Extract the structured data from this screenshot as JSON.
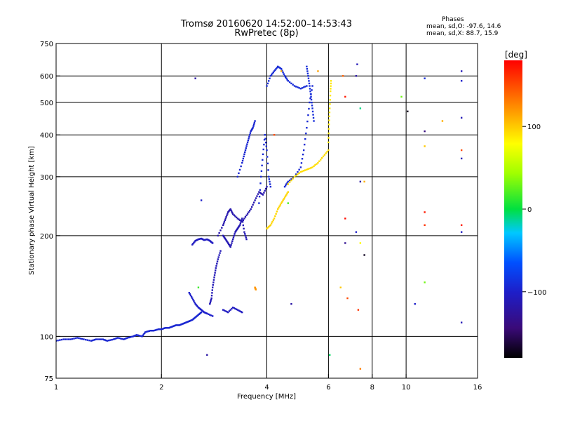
{
  "header": {
    "title_line1": "Tromsø 20160620 14:52:00–14:53:43",
    "title_line2": "RwPretec (8p)"
  },
  "stats": {
    "heading": "Phases",
    "line_o": "mean, sd,O: -97.6, 14.6",
    "line_x": "mean, sd,X:  88.7, 15.9"
  },
  "colorbar": {
    "unit": "[deg]",
    "range": [
      -180,
      180
    ],
    "ticks": [
      {
        "value": 100,
        "label": "100"
      },
      {
        "value": 0,
        "label": "0"
      },
      {
        "value": -100,
        "label": "−100"
      }
    ]
  },
  "chart_data": {
    "type": "scatter",
    "xlabel": "Frequency [MHz]",
    "ylabel": "Stationary phase Virtual Height [km]",
    "xscale": "log",
    "yscale": "log",
    "xlim": [
      1,
      16
    ],
    "ylim": [
      75,
      750
    ],
    "xticks": [
      {
        "value": 1,
        "label": "1"
      },
      {
        "value": 2,
        "label": "2"
      },
      {
        "value": 4,
        "label": "4"
      },
      {
        "value": 6,
        "label": "6"
      },
      {
        "value": 8,
        "label": "8"
      },
      {
        "value": 10,
        "label": "10"
      },
      {
        "value": 16,
        "label": "16"
      }
    ],
    "xgrid": [
      2,
      4,
      6,
      8,
      10
    ],
    "yticks": [
      {
        "value": 75,
        "label": "75"
      },
      {
        "value": 100,
        "label": "100"
      },
      {
        "value": 200,
        "label": "200"
      },
      {
        "value": 300,
        "label": "300"
      },
      {
        "value": 400,
        "label": "400"
      },
      {
        "value": 500,
        "label": "500"
      },
      {
        "value": 600,
        "label": "600"
      },
      {
        "value": 750,
        "label": "750"
      }
    ],
    "ygrid": [
      100,
      200,
      300,
      400,
      500,
      600
    ],
    "grid": true,
    "color_encodes": "phase [deg]",
    "traces": [
      {
        "phase": -95,
        "x": [
          1.0,
          1.05,
          1.1,
          1.15,
          1.2,
          1.26,
          1.3,
          1.36,
          1.4,
          1.46,
          1.5,
          1.56,
          1.6,
          1.66,
          1.7,
          1.76,
          1.8,
          1.86,
          1.9,
          1.96,
          2.0,
          2.05,
          2.1,
          2.15,
          2.2,
          2.25,
          2.3,
          2.35,
          2.4,
          2.45,
          2.5,
          2.55,
          2.6
        ],
        "y": [
          97,
          98,
          98,
          99,
          98,
          97,
          98,
          98,
          97,
          98,
          99,
          98,
          99,
          100,
          101,
          100,
          103,
          104,
          104,
          105,
          105,
          106,
          106,
          107,
          108,
          108,
          109,
          110,
          111,
          112,
          114,
          116,
          118
        ]
      },
      {
        "phase": -100,
        "x": [
          2.4,
          2.45,
          2.5,
          2.55,
          2.6,
          2.65,
          2.7,
          2.8
        ],
        "y": [
          135,
          130,
          125,
          122,
          120,
          118,
          117,
          115
        ]
      },
      {
        "phase": -105,
        "x": [
          2.45,
          2.5,
          2.55,
          2.6,
          2.65,
          2.7,
          2.75,
          2.8
        ],
        "y": [
          188,
          193,
          195,
          196,
          194,
          195,
          193,
          190
        ]
      },
      {
        "phase": -110,
        "x": [
          2.75,
          2.78,
          2.8,
          2.83,
          2.86,
          2.9,
          2.95
        ],
        "y": [
          125,
          130,
          140,
          150,
          160,
          170,
          180
        ]
      },
      {
        "phase": -115,
        "x": [
          2.9,
          3.0,
          3.05,
          3.1,
          3.15,
          3.2,
          3.3,
          3.4,
          3.5,
          3.6,
          3.7,
          3.8,
          3.9,
          4.0
        ],
        "y": [
          200,
          215,
          225,
          235,
          240,
          232,
          225,
          220,
          230,
          240,
          255,
          270,
          265,
          280
        ]
      },
      {
        "phase": -112,
        "x": [
          3.0,
          3.05,
          3.1,
          3.15,
          3.2,
          3.25,
          3.3,
          3.35,
          3.4,
          3.45,
          3.5
        ],
        "y": [
          200,
          195,
          190,
          185,
          195,
          205,
          210,
          215,
          225,
          205,
          195
        ]
      },
      {
        "phase": -105,
        "x": [
          3.0,
          3.1,
          3.2,
          3.3,
          3.4
        ],
        "y": [
          120,
          118,
          122,
          120,
          118
        ]
      },
      {
        "phase": -95,
        "x": [
          3.3,
          3.4,
          3.45,
          3.5,
          3.55,
          3.6,
          3.65,
          3.7
        ],
        "y": [
          300,
          330,
          350,
          370,
          390,
          410,
          420,
          440
        ]
      },
      {
        "phase": -93,
        "x": [
          3.8,
          3.85,
          3.9,
          3.95,
          4.0,
          4.05,
          4.1
        ],
        "y": [
          250,
          300,
          350,
          400,
          360,
          300,
          280
        ]
      },
      {
        "phase": -92,
        "x": [
          4.0,
          4.1,
          4.2,
          4.3,
          4.4,
          4.5,
          4.6,
          4.8,
          5.0,
          5.2
        ],
        "y": [
          560,
          600,
          620,
          640,
          630,
          600,
          580,
          560,
          550,
          560
        ]
      },
      {
        "phase": -94,
        "x": [
          4.5,
          4.6,
          4.8,
          5.0,
          5.1,
          5.2,
          5.3,
          5.4
        ],
        "y": [
          280,
          290,
          300,
          320,
          360,
          420,
          500,
          560
        ]
      },
      {
        "phase": -90,
        "x": [
          5.2,
          5.25,
          5.3,
          5.35,
          5.4,
          5.45
        ],
        "y": [
          640,
          600,
          560,
          520,
          480,
          440
        ]
      },
      {
        "phase": 95,
        "x": [
          4.0,
          4.1,
          4.2,
          4.3,
          4.4,
          4.5,
          4.6
        ],
        "y": [
          210,
          215,
          225,
          240,
          250,
          260,
          270
        ]
      },
      {
        "phase": 92,
        "x": [
          4.6,
          4.8,
          5.0,
          5.2,
          5.4,
          5.6,
          5.8,
          6.0
        ],
        "y": [
          285,
          300,
          310,
          315,
          320,
          330,
          345,
          360
        ]
      },
      {
        "phase": 88,
        "x": [
          6.0,
          6.02,
          6.05,
          6.08,
          6.1
        ],
        "y": [
          380,
          430,
          480,
          540,
          580
        ]
      },
      {
        "phase": 120,
        "x": [
          3.7,
          3.72
        ],
        "y": [
          140,
          138
        ]
      }
    ],
    "scatter": [
      {
        "x": 2.5,
        "y": 590,
        "phase": -120
      },
      {
        "x": 2.6,
        "y": 255,
        "phase": -100
      },
      {
        "x": 2.7,
        "y": 88,
        "phase": -120
      },
      {
        "x": 2.55,
        "y": 140,
        "phase": 15
      },
      {
        "x": 4.4,
        "y": 620,
        "phase": 110
      },
      {
        "x": 4.2,
        "y": 400,
        "phase": 150
      },
      {
        "x": 4.6,
        "y": 250,
        "phase": 20
      },
      {
        "x": 4.7,
        "y": 125,
        "phase": -120
      },
      {
        "x": 5.6,
        "y": 620,
        "phase": 115
      },
      {
        "x": 6.05,
        "y": 88,
        "phase": -5
      },
      {
        "x": 6.6,
        "y": 600,
        "phase": 140
      },
      {
        "x": 6.7,
        "y": 520,
        "phase": 170
      },
      {
        "x": 6.5,
        "y": 140,
        "phase": 100
      },
      {
        "x": 6.7,
        "y": 225,
        "phase": 175
      },
      {
        "x": 6.8,
        "y": 130,
        "phase": 150
      },
      {
        "x": 6.7,
        "y": 190,
        "phase": -130
      },
      {
        "x": 7.2,
        "y": 600,
        "phase": -120
      },
      {
        "x": 7.25,
        "y": 650,
        "phase": -110
      },
      {
        "x": 7.4,
        "y": 480,
        "phase": -10
      },
      {
        "x": 7.2,
        "y": 205,
        "phase": -100
      },
      {
        "x": 7.4,
        "y": 290,
        "phase": -120
      },
      {
        "x": 7.6,
        "y": 290,
        "phase": 110
      },
      {
        "x": 7.4,
        "y": 80,
        "phase": 130
      },
      {
        "x": 7.3,
        "y": 120,
        "phase": 160
      },
      {
        "x": 7.6,
        "y": 175,
        "phase": -170
      },
      {
        "x": 7.4,
        "y": 190,
        "phase": 80
      },
      {
        "x": 9.7,
        "y": 520,
        "phase": 30
      },
      {
        "x": 10.1,
        "y": 470,
        "phase": -170
      },
      {
        "x": 10.6,
        "y": 125,
        "phase": -100
      },
      {
        "x": 11.3,
        "y": 590,
        "phase": -90
      },
      {
        "x": 11.3,
        "y": 410,
        "phase": -140
      },
      {
        "x": 11.3,
        "y": 370,
        "phase": 100
      },
      {
        "x": 11.3,
        "y": 235,
        "phase": 170
      },
      {
        "x": 11.3,
        "y": 215,
        "phase": 160
      },
      {
        "x": 11.3,
        "y": 145,
        "phase": 30
      },
      {
        "x": 12.7,
        "y": 440,
        "phase": 110
      },
      {
        "x": 14.4,
        "y": 620,
        "phase": -110
      },
      {
        "x": 14.4,
        "y": 580,
        "phase": -100
      },
      {
        "x": 14.4,
        "y": 450,
        "phase": -110
      },
      {
        "x": 14.4,
        "y": 360,
        "phase": 150
      },
      {
        "x": 14.4,
        "y": 340,
        "phase": -110
      },
      {
        "x": 14.4,
        "y": 215,
        "phase": 170
      },
      {
        "x": 14.4,
        "y": 205,
        "phase": -105
      },
      {
        "x": 14.4,
        "y": 110,
        "phase": -110
      }
    ]
  }
}
